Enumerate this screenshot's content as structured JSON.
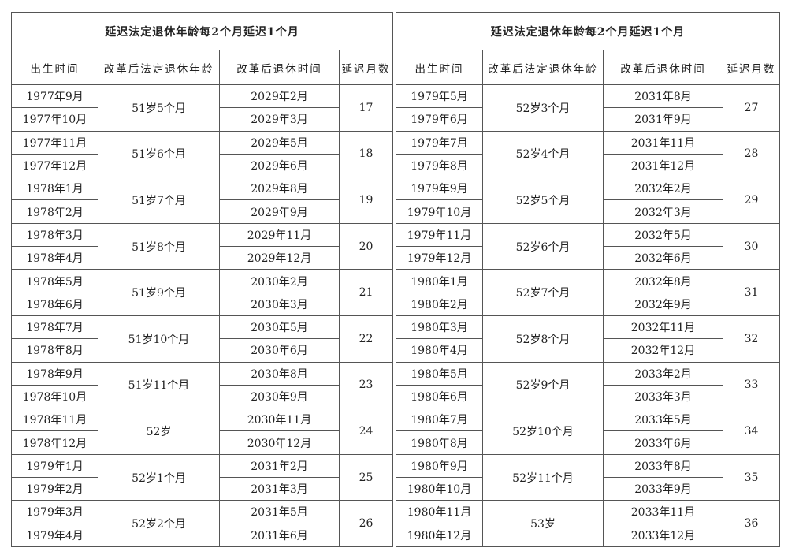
{
  "tables": [
    {
      "title": "延迟法定退休年龄每2个月延迟1个月",
      "headers": [
        "出生时间",
        "改革后法定退休年龄",
        "改革后退休时间",
        "延迟月数"
      ],
      "groups": [
        {
          "birth": [
            "1977年9月",
            "1977年10月"
          ],
          "age": "51岁5个月",
          "retire": [
            "2029年2月",
            "2029年3月"
          ],
          "months": "17"
        },
        {
          "birth": [
            "1977年11月",
            "1977年12月"
          ],
          "age": "51岁6个月",
          "retire": [
            "2029年5月",
            "2029年6月"
          ],
          "months": "18"
        },
        {
          "birth": [
            "1978年1月",
            "1978年2月"
          ],
          "age": "51岁7个月",
          "retire": [
            "2029年8月",
            "2029年9月"
          ],
          "months": "19"
        },
        {
          "birth": [
            "1978年3月",
            "1978年4月"
          ],
          "age": "51岁8个月",
          "retire": [
            "2029年11月",
            "2029年12月"
          ],
          "months": "20"
        },
        {
          "birth": [
            "1978年5月",
            "1978年6月"
          ],
          "age": "51岁9个月",
          "retire": [
            "2030年2月",
            "2030年3月"
          ],
          "months": "21"
        },
        {
          "birth": [
            "1978年7月",
            "1978年8月"
          ],
          "age": "51岁10个月",
          "retire": [
            "2030年5月",
            "2030年6月"
          ],
          "months": "22"
        },
        {
          "birth": [
            "1978年9月",
            "1978年10月"
          ],
          "age": "51岁11个月",
          "retire": [
            "2030年8月",
            "2030年9月"
          ],
          "months": "23"
        },
        {
          "birth": [
            "1978年11月",
            "1978年12月"
          ],
          "age": "52岁",
          "retire": [
            "2030年11月",
            "2030年12月"
          ],
          "months": "24"
        },
        {
          "birth": [
            "1979年1月",
            "1979年2月"
          ],
          "age": "52岁1个月",
          "retire": [
            "2031年2月",
            "2031年3月"
          ],
          "months": "25"
        },
        {
          "birth": [
            "1979年3月",
            "1979年4月"
          ],
          "age": "52岁2个月",
          "retire": [
            "2031年5月",
            "2031年6月"
          ],
          "months": "26"
        }
      ]
    },
    {
      "title": "延迟法定退休年龄每2个月延迟1个月",
      "headers": [
        "出生时间",
        "改革后法定退休年龄",
        "改革后退休时间",
        "延迟月数"
      ],
      "groups": [
        {
          "birth": [
            "1979年5月",
            "1979年6月"
          ],
          "age": "52岁3个月",
          "retire": [
            "2031年8月",
            "2031年9月"
          ],
          "months": "27"
        },
        {
          "birth": [
            "1979年7月",
            "1979年8月"
          ],
          "age": "52岁4个月",
          "retire": [
            "2031年11月",
            "2031年12月"
          ],
          "months": "28"
        },
        {
          "birth": [
            "1979年9月",
            "1979年10月"
          ],
          "age": "52岁5个月",
          "retire": [
            "2032年2月",
            "2032年3月"
          ],
          "months": "29"
        },
        {
          "birth": [
            "1979年11月",
            "1979年12月"
          ],
          "age": "52岁6个月",
          "retire": [
            "2032年5月",
            "2032年6月"
          ],
          "months": "30"
        },
        {
          "birth": [
            "1980年1月",
            "1980年2月"
          ],
          "age": "52岁7个月",
          "retire": [
            "2032年8月",
            "2032年9月"
          ],
          "months": "31"
        },
        {
          "birth": [
            "1980年3月",
            "1980年4月"
          ],
          "age": "52岁8个月",
          "retire": [
            "2032年11月",
            "2032年12月"
          ],
          "months": "32"
        },
        {
          "birth": [
            "1980年5月",
            "1980年6月"
          ],
          "age": "52岁9个月",
          "retire": [
            "2033年2月",
            "2033年3月"
          ],
          "months": "33"
        },
        {
          "birth": [
            "1980年7月",
            "1980年8月"
          ],
          "age": "52岁10个月",
          "retire": [
            "2033年5月",
            "2033年6月"
          ],
          "months": "34"
        },
        {
          "birth": [
            "1980年9月",
            "1980年10月"
          ],
          "age": "52岁11个月",
          "retire": [
            "2033年8月",
            "2033年9月"
          ],
          "months": "35"
        },
        {
          "birth": [
            "1980年11月",
            "1980年12月"
          ],
          "age": "53岁",
          "retire": [
            "2033年11月",
            "2033年12月"
          ],
          "months": "36"
        }
      ]
    }
  ]
}
